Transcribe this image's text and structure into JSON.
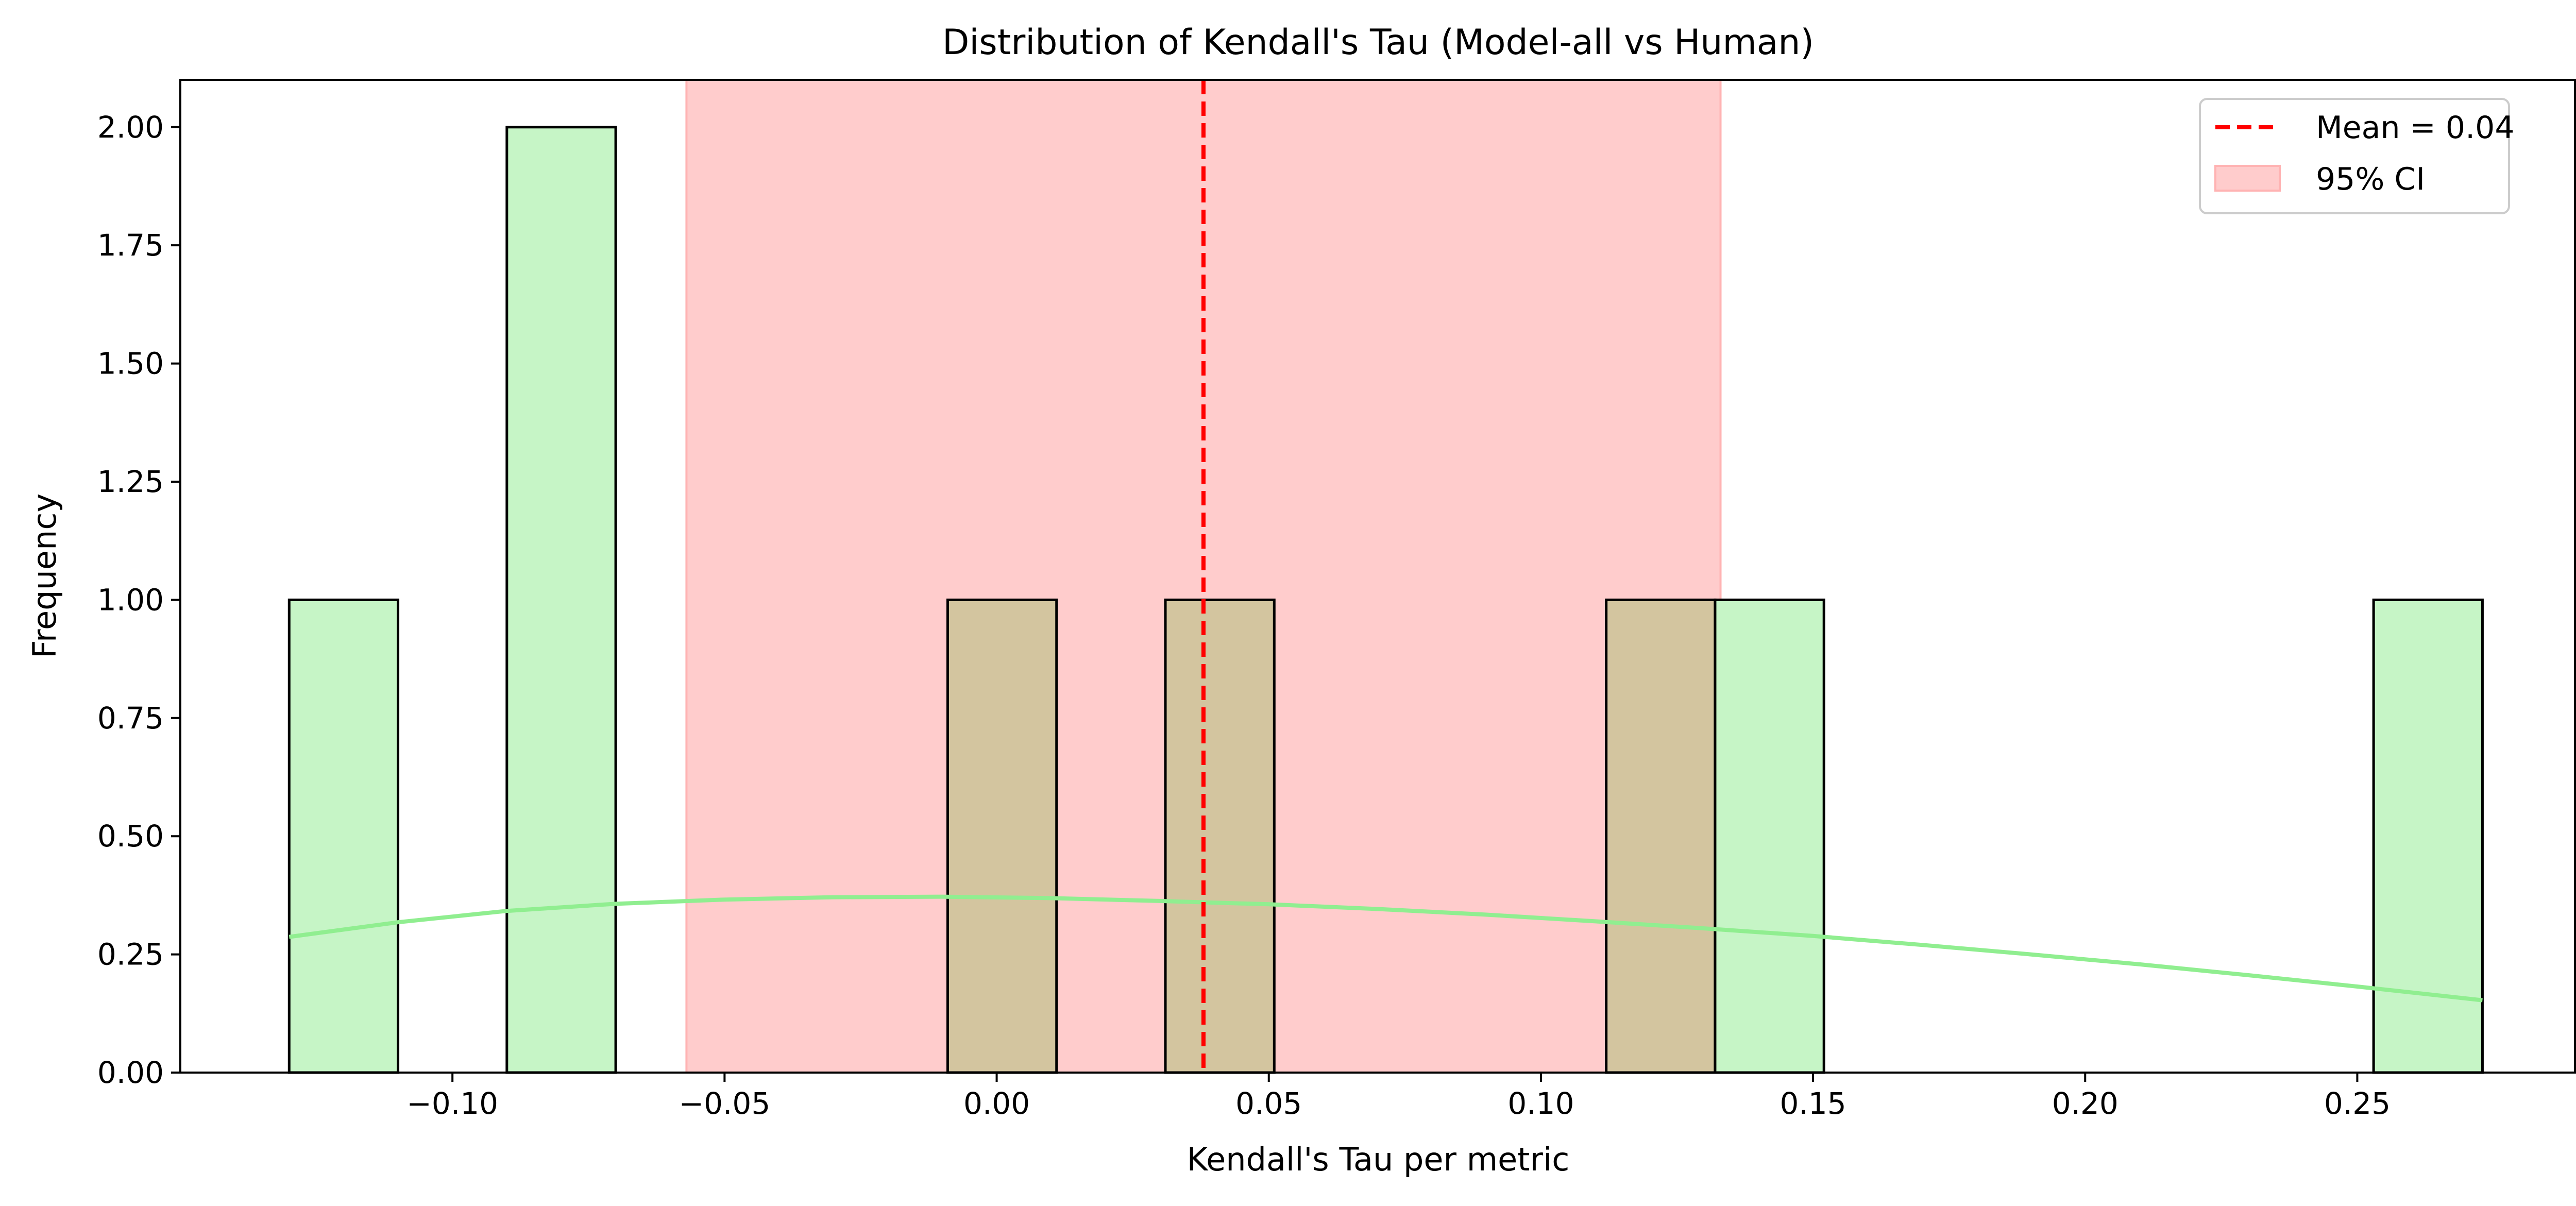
{
  "chart_data": {
    "type": "bar",
    "title": "Distribution of Kendall's Tau (Model-all vs Human)",
    "xlabel": "Kendall's Tau per metric",
    "ylabel": "Frequency",
    "xlim": [
      -0.15,
      0.29
    ],
    "ylim": [
      0,
      2.1
    ],
    "x_ticks": [
      -0.1,
      -0.05,
      0.0,
      0.05,
      0.1,
      0.15,
      0.2,
      0.25
    ],
    "x_tick_labels": [
      "−0.10",
      "−0.05",
      "0.00",
      "0.05",
      "0.10",
      "0.15",
      "0.20",
      "0.25"
    ],
    "y_ticks": [
      0.0,
      0.25,
      0.5,
      0.75,
      1.0,
      1.25,
      1.5,
      1.75,
      2.0
    ],
    "y_tick_labels": [
      "0.00",
      "0.25",
      "0.50",
      "0.75",
      "1.00",
      "1.25",
      "1.50",
      "1.75",
      "2.00"
    ],
    "bins": [
      {
        "x0": -0.13,
        "x1": -0.11,
        "count": 1
      },
      {
        "x0": -0.09,
        "x1": -0.07,
        "count": 2
      },
      {
        "x0": -0.009,
        "x1": 0.011,
        "count": 1
      },
      {
        "x0": 0.031,
        "x1": 0.051,
        "count": 1
      },
      {
        "x0": 0.112,
        "x1": 0.132,
        "count": 1
      },
      {
        "x0": 0.132,
        "x1": 0.152,
        "count": 1
      },
      {
        "x0": 0.253,
        "x1": 0.273,
        "count": 1
      }
    ],
    "kde": {
      "x": [
        -0.13,
        -0.11,
        -0.09,
        -0.07,
        -0.05,
        -0.03,
        -0.01,
        0.01,
        0.03,
        0.05,
        0.07,
        0.09,
        0.11,
        0.13,
        0.15,
        0.17,
        0.19,
        0.21,
        0.23,
        0.25,
        0.273
      ],
      "y": [
        0.287,
        0.318,
        0.342,
        0.357,
        0.366,
        0.371,
        0.372,
        0.369,
        0.363,
        0.356,
        0.346,
        0.334,
        0.32,
        0.305,
        0.289,
        0.27,
        0.25,
        0.229,
        0.206,
        0.182,
        0.153
      ]
    },
    "mean": {
      "value": 0.038,
      "label": "Mean = 0.04"
    },
    "ci": {
      "low": -0.057,
      "high": 0.133,
      "label": "95% CI"
    },
    "legend_placement": "top-right",
    "grid": false,
    "colors": {
      "bar_fill": "#c6f5c6",
      "bar_overlap_fill": "#d3c59f",
      "bar_edge": "#000000",
      "kde_line": "#90ee90",
      "mean_line": "#ff0000",
      "ci_fill": "#ffcccc",
      "ci_edge": "#ffb3b3"
    }
  }
}
